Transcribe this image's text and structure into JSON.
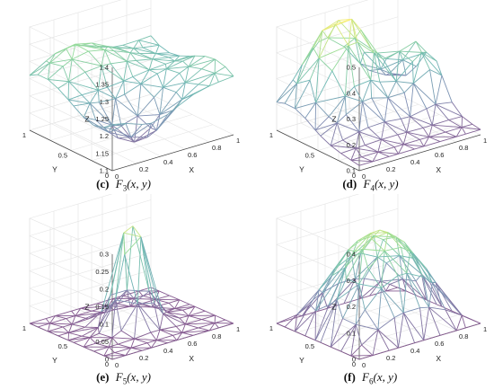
{
  "chart_data": [
    {
      "type": "surface",
      "caption": {
        "label": "(c)",
        "func": "F",
        "sub": "3",
        "args": "(x, y)"
      },
      "xlabel": "X",
      "ylabel": "Y",
      "zlabel": "Z",
      "xlim": [
        0,
        1
      ],
      "ylim": [
        0,
        1
      ],
      "zlim": [
        1.1,
        1.4
      ],
      "xticks": [
        "0",
        "0.2",
        "0.4",
        "0.6",
        "0.8",
        "1"
      ],
      "yticks": [
        "0",
        "0.5",
        "1"
      ],
      "zticks": [
        "1.1",
        "1.15",
        "1.2",
        "1.25",
        "1.3",
        "1.35",
        "1.4"
      ],
      "grid": true,
      "colormap": "viridis",
      "z_description": "saddle-like wavy surface, high ridge near x=0.3 and y=1, valley near x=0.3,y=0.2, rising to about 1.25 at x=1"
    },
    {
      "type": "surface",
      "caption": {
        "label": "(d)",
        "func": "F",
        "sub": "4",
        "args": "(x, y)"
      },
      "xlabel": "X",
      "ylabel": "Y",
      "zlabel": "Z",
      "xlim": [
        0,
        1
      ],
      "ylim": [
        0,
        1
      ],
      "zlim": [
        0.1,
        0.5
      ],
      "xticks": [
        "0",
        "0.2",
        "0.4",
        "0.6",
        "0.8",
        "1"
      ],
      "yticks": [
        "0",
        "0.5",
        "1"
      ],
      "zticks": [
        "0.1",
        "0.2",
        "0.3",
        "0.4",
        "0.5"
      ],
      "grid": true,
      "colormap": "viridis",
      "z_description": "two hump surface, main peak about 0.5 near x=0.4,y=0.8 and smaller peak about 0.35 near x=0.9,y=0.6"
    },
    {
      "type": "surface",
      "caption": {
        "label": "(e)",
        "func": "F",
        "sub": "5",
        "args": "(x, y)"
      },
      "xlabel": "X",
      "ylabel": "Y",
      "zlabel": "Z",
      "xlim": [
        0,
        1
      ],
      "ylim": [
        0,
        1
      ],
      "zlim": [
        0,
        0.3
      ],
      "xticks": [
        "0",
        "0.2",
        "0.4",
        "0.6",
        "0.8",
        "1"
      ],
      "yticks": [
        "0",
        "0.5",
        "1"
      ],
      "zticks": [
        "0",
        "0.05",
        "0.1",
        "0.15",
        "0.2",
        "0.25",
        "0.3"
      ],
      "grid": true,
      "colormap": "viridis",
      "z_description": "sharp central peak about 0.3 at x=0.5,y=0.5, flat near 0 elsewhere"
    },
    {
      "type": "surface",
      "caption": {
        "label": "(f)",
        "func": "F",
        "sub": "6",
        "args": "(x, y)"
      },
      "xlabel": "X",
      "ylabel": "Y",
      "zlabel": "Z",
      "xlim": [
        0,
        1
      ],
      "ylim": [
        0,
        1
      ],
      "zlim": [
        0,
        0.4
      ],
      "xticks": [
        "0",
        "0.2",
        "0.4",
        "0.6",
        "0.8",
        "1"
      ],
      "yticks": [
        "0",
        "0.5",
        "1"
      ],
      "zticks": [
        "0",
        "0.1",
        "0.2",
        "0.3",
        "0.4"
      ],
      "grid": true,
      "colormap": "viridis",
      "z_description": "smooth dome, maximum about 0.35 at x=0.5,y=0.5, zero on all edges"
    }
  ]
}
